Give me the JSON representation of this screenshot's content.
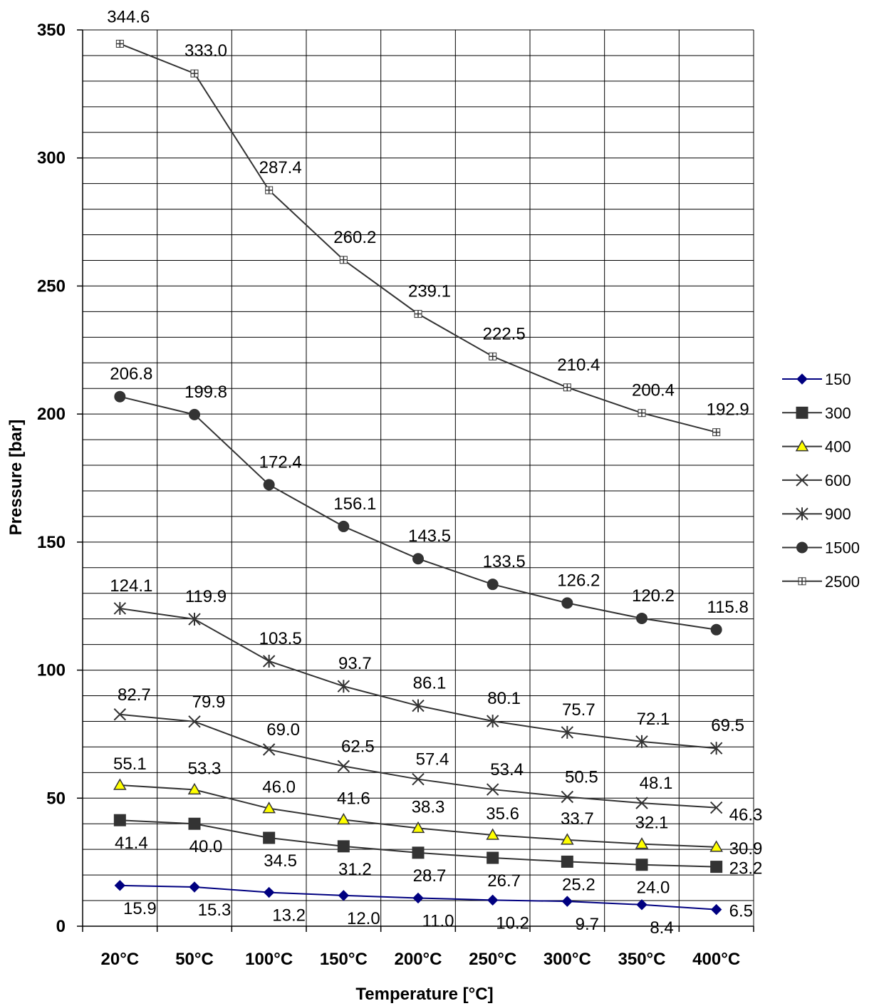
{
  "chart_data": {
    "type": "line",
    "xlabel": "Temperature [°C]",
    "ylabel": "Pressure [bar]",
    "categories": [
      "20°C",
      "50°C",
      "100°C",
      "150°C",
      "200°C",
      "250°C",
      "300°C",
      "350°C",
      "400°C"
    ],
    "ylim": [
      0,
      350
    ],
    "yticks": [
      0,
      50,
      100,
      150,
      200,
      250,
      300,
      350
    ],
    "grid": true,
    "legend_position": "right",
    "series": [
      {
        "name": "150",
        "values": [
          15.9,
          15.3,
          13.2,
          12.0,
          11.0,
          10.2,
          9.7,
          8.4,
          6.5
        ],
        "labels": [
          "15.9",
          "15.3",
          "13.2",
          "12.0",
          "11.0",
          "10.2",
          "9.7",
          "8.4",
          "6.5"
        ],
        "marker": "diamond",
        "color": "#000080",
        "fill": "#000080"
      },
      {
        "name": "300",
        "values": [
          41.4,
          40.0,
          34.5,
          31.2,
          28.7,
          26.7,
          25.2,
          24.0,
          23.2
        ],
        "labels": [
          "41.4",
          "40.0",
          "34.5",
          "31.2",
          "28.7",
          "26.7",
          "25.2",
          "24.0",
          "23.2"
        ],
        "marker": "square",
        "color": "#333333",
        "fill": "#333333"
      },
      {
        "name": "400",
        "values": [
          55.1,
          53.3,
          46.0,
          41.6,
          38.3,
          35.6,
          33.7,
          32.1,
          30.9
        ],
        "labels": [
          "55.1",
          "53.3",
          "46.0",
          "41.6",
          "38.3",
          "35.6",
          "33.7",
          "32.1",
          "30.9"
        ],
        "marker": "triangle",
        "color": "#333333",
        "fill": "#ffff00"
      },
      {
        "name": "600",
        "values": [
          82.7,
          79.9,
          69.0,
          62.5,
          57.4,
          53.4,
          50.5,
          48.1,
          46.3
        ],
        "labels": [
          "82.7",
          "79.9",
          "69.0",
          "62.5",
          "57.4",
          "53.4",
          "50.5",
          "48.1",
          "46.3"
        ],
        "marker": "x",
        "color": "#333333",
        "fill": "none"
      },
      {
        "name": "900",
        "values": [
          124.1,
          119.9,
          103.5,
          93.7,
          86.1,
          80.1,
          75.7,
          72.1,
          69.5
        ],
        "labels": [
          "124.1",
          "119.9",
          "103.5",
          "93.7",
          "86.1",
          "80.1",
          "75.7",
          "72.1",
          "69.5"
        ],
        "marker": "star",
        "color": "#333333",
        "fill": "none"
      },
      {
        "name": "1500",
        "values": [
          206.8,
          199.8,
          172.4,
          156.1,
          143.5,
          133.5,
          126.2,
          120.2,
          115.8
        ],
        "labels": [
          "206.8",
          "199.8",
          "172.4",
          "156.1",
          "143.5",
          "133.5",
          "126.2",
          "120.2",
          "115.8"
        ],
        "marker": "circle",
        "color": "#333333",
        "fill": "#333333"
      },
      {
        "name": "2500",
        "values": [
          344.6,
          333.0,
          287.4,
          260.2,
          239.1,
          222.5,
          210.4,
          200.4,
          192.9
        ],
        "labels": [
          "344.6",
          "333.0",
          "287.4",
          "260.2",
          "239.1",
          "222.5",
          "210.4",
          "200.4",
          "192.9"
        ],
        "marker": "hatched-square",
        "color": "#333333",
        "fill": "#ffffff"
      }
    ]
  }
}
